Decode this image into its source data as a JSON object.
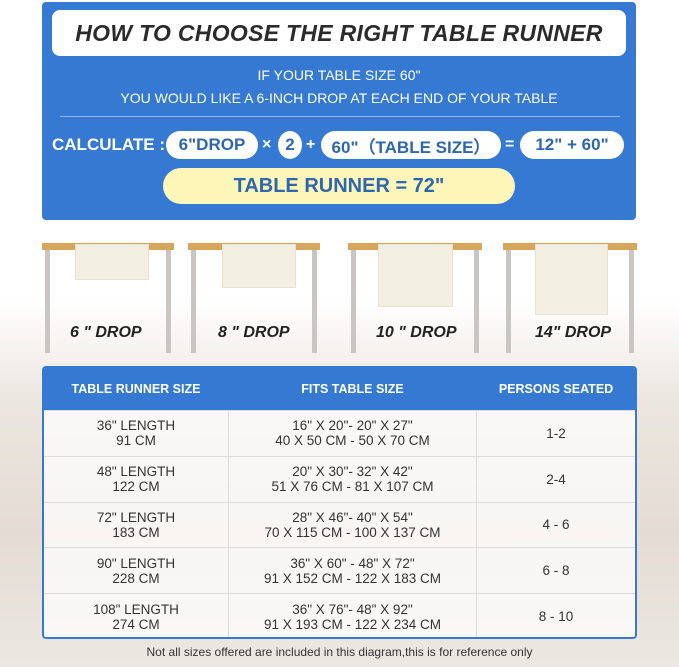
{
  "header": {
    "title": "HOW TO CHOOSE THE RIGHT TABLE RUNNER",
    "line1": "IF YOUR TABLE SIZE 60\"",
    "line2": "YOU WOULD LIKE A 6-INCH DROP AT EACH END OF YOUR TABLE"
  },
  "calculation": {
    "label": "CALCULATE :",
    "drop": "6\"DROP",
    "times": "×",
    "factor": "2",
    "plus": "+",
    "table_size": "60\"（TABLE SIZE）",
    "equals": "=",
    "sum": "12\" + 60\"",
    "result": "TABLE RUNNER = 72\""
  },
  "drops": [
    {
      "label": "6 \" DROP"
    },
    {
      "label": "8 \" DROP"
    },
    {
      "label": "10 \" DROP"
    },
    {
      "label": "14\" DROP"
    }
  ],
  "colors": {
    "brand_blue": "#3579d2",
    "result_yellow": "#fdf6b8",
    "table_wood": "#d6a55e"
  },
  "size_table": {
    "headers": [
      "TABLE RUNNER SIZE",
      "FITS TABLE SIZE",
      "PERSONS SEATED"
    ],
    "rows": [
      {
        "length": "36\" LENGTH",
        "cm": "91 CM",
        "fits_in": "16\" X 20\"- 20\" X 27\"",
        "fits_cm": "40 X 50 CM - 50 X 70 CM",
        "seated": "1-2"
      },
      {
        "length": "48\" LENGTH",
        "cm": "122 CM",
        "fits_in": "20\" X 30\"- 32\" X 42\"",
        "fits_cm": "51 X 76 CM - 81 X 107 CM",
        "seated": "2-4"
      },
      {
        "length": "72\" LENGTH",
        "cm": "183 CM",
        "fits_in": "28\" X 46\"- 40\" X 54\"",
        "fits_cm": "70 X 115 CM - 100 X 137 CM",
        "seated": "4 - 6"
      },
      {
        "length": "90\" LENGTH",
        "cm": "228 CM",
        "fits_in": "36\" X 60\" - 48\" X 72\"",
        "fits_cm": "91 X 152 CM - 122 X 183 CM",
        "seated": "6 - 8"
      },
      {
        "length": "108\" LENGTH",
        "cm": "274 CM",
        "fits_in": "36\" X 76\"- 48\" X 92\"",
        "fits_cm": "91 X 193 CM - 122 X 234 CM",
        "seated": "8 - 10"
      }
    ]
  },
  "footnote": "Not all sizes offered are included in this diagram,this is for reference only"
}
